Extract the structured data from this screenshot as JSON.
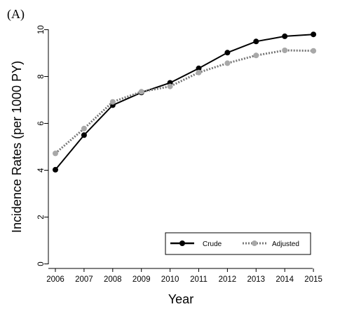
{
  "chart_data": {
    "type": "line",
    "panel_label": "(A)",
    "title": "",
    "xlabel": "Year",
    "ylabel": "Incidence Rates (per 1000 PY)",
    "x": [
      2006,
      2007,
      2008,
      2009,
      2010,
      2011,
      2012,
      2013,
      2014,
      2015
    ],
    "xticks": [
      "2006",
      "2007",
      "2008",
      "2009",
      "2010",
      "2011",
      "2012",
      "2013",
      "2014",
      "2015"
    ],
    "yticks": [
      "0",
      "2",
      "4",
      "6",
      "8",
      "10"
    ],
    "ylim": [
      0,
      10
    ],
    "grid": false,
    "legend_position": "bottom-right",
    "series": [
      {
        "name": "Crude",
        "color": "#000000",
        "line_style": "solid",
        "values": [
          4.02,
          5.5,
          6.78,
          7.32,
          7.73,
          8.35,
          9.02,
          9.5,
          9.72,
          9.8
        ]
      },
      {
        "name": "Adjusted",
        "color": "#9a9a9a",
        "line_style": "dotted",
        "values": [
          4.72,
          5.78,
          6.92,
          7.35,
          7.58,
          8.17,
          8.57,
          8.9,
          9.12,
          9.1
        ]
      }
    ]
  }
}
